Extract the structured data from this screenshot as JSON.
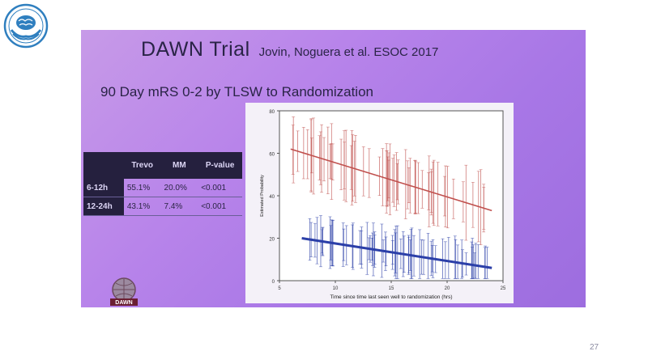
{
  "slide": {
    "title": "DAWN Trial",
    "authors": "Jovin, Noguera et al. ESOC 2017",
    "subtitle": "90 Day mRS 0-2 by TLSW to Randomization",
    "page_number": "27"
  },
  "table": {
    "headers": [
      "",
      "Trevo",
      "MM",
      "P-value"
    ],
    "rows": [
      {
        "label": "6-12h",
        "trevo": "55.1%",
        "mm": "20.0%",
        "p": "<0.001"
      },
      {
        "label": "12-24h",
        "trevo": "43.1%",
        "mm": "7.4%",
        "p": "<0.001"
      }
    ]
  },
  "chart_data": {
    "type": "line",
    "title": "",
    "xlabel": "Time since time last seen well to randomization (hrs)",
    "ylabel": "Estimated Probability",
    "xlim": [
      5,
      25
    ],
    "ylim": [
      0,
      80
    ],
    "x_ticks": [
      "5",
      "10",
      "15",
      "20",
      "25"
    ],
    "y_ticks": [
      "0",
      "20",
      "40",
      "60",
      "80"
    ],
    "series": [
      {
        "color": "#c0504d",
        "x": [
          6,
          24
        ],
        "y": [
          62,
          33
        ]
      },
      {
        "color": "#2b3fa8",
        "x": [
          7,
          24
        ],
        "y": [
          20,
          6
        ]
      }
    ]
  },
  "colors": {
    "photo_bg": "#b884ea",
    "table_header_bg": "#25203e",
    "red_series": "#c0504d",
    "blue_series": "#2b3fa8"
  },
  "icons": {
    "top_logo": "brain-hands-logo-icon",
    "dawn_logo": "dawn-trial-logo-icon"
  }
}
